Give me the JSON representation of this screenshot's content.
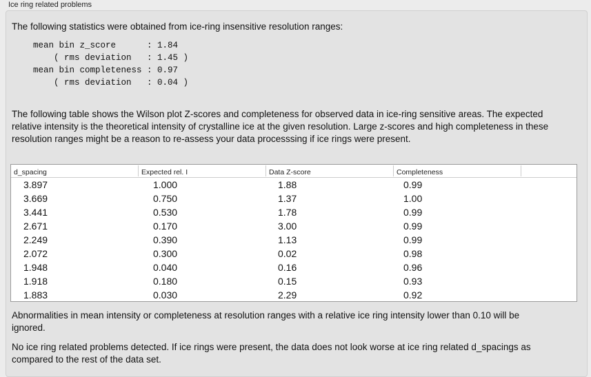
{
  "title": "Ice ring related problems",
  "intro": "The following statistics were obtained from ice-ring insensitive resolution ranges:",
  "stats": "mean bin z_score      : 1.84\n    ( rms deviation   : 1.45 )\nmean bin completeness : 0.97\n    ( rms deviation   : 0.04 )",
  "table_intro": "The following table shows the Wilson plot Z-scores and completeness for observed data in ice-ring sensitive areas. The expected relative intensity is the theoretical intensity of crystalline ice at the given resolution. Large z-scores and high completeness in these resolution ranges might be a reason to re-assess your data processsing if ice rings were present.",
  "table": {
    "headers": [
      "d_spacing",
      "Expected rel. I",
      "Data Z-score",
      "Completeness"
    ],
    "rows": [
      [
        "3.897",
        "1.000",
        "1.88",
        "0.99"
      ],
      [
        "3.669",
        "0.750",
        "1.37",
        "1.00"
      ],
      [
        "3.441",
        "0.530",
        "1.78",
        "0.99"
      ],
      [
        "2.671",
        "0.170",
        "3.00",
        "0.99"
      ],
      [
        "2.249",
        "0.390",
        "1.13",
        "0.99"
      ],
      [
        "2.072",
        "0.300",
        "0.02",
        "0.98"
      ],
      [
        "1.948",
        "0.040",
        "0.16",
        "0.96"
      ],
      [
        "1.918",
        "0.180",
        "0.15",
        "0.93"
      ],
      [
        "1.883",
        "0.030",
        "2.29",
        "0.92"
      ]
    ]
  },
  "note": "Abnormalities in mean intensity or completeness at resolution ranges with a relative ice ring intensity lower than 0.10 will be ignored.",
  "conclusion": "No ice ring related problems detected. If ice rings were present, the data does not look worse at ice ring related d_spacings as compared to the rest of the data set."
}
